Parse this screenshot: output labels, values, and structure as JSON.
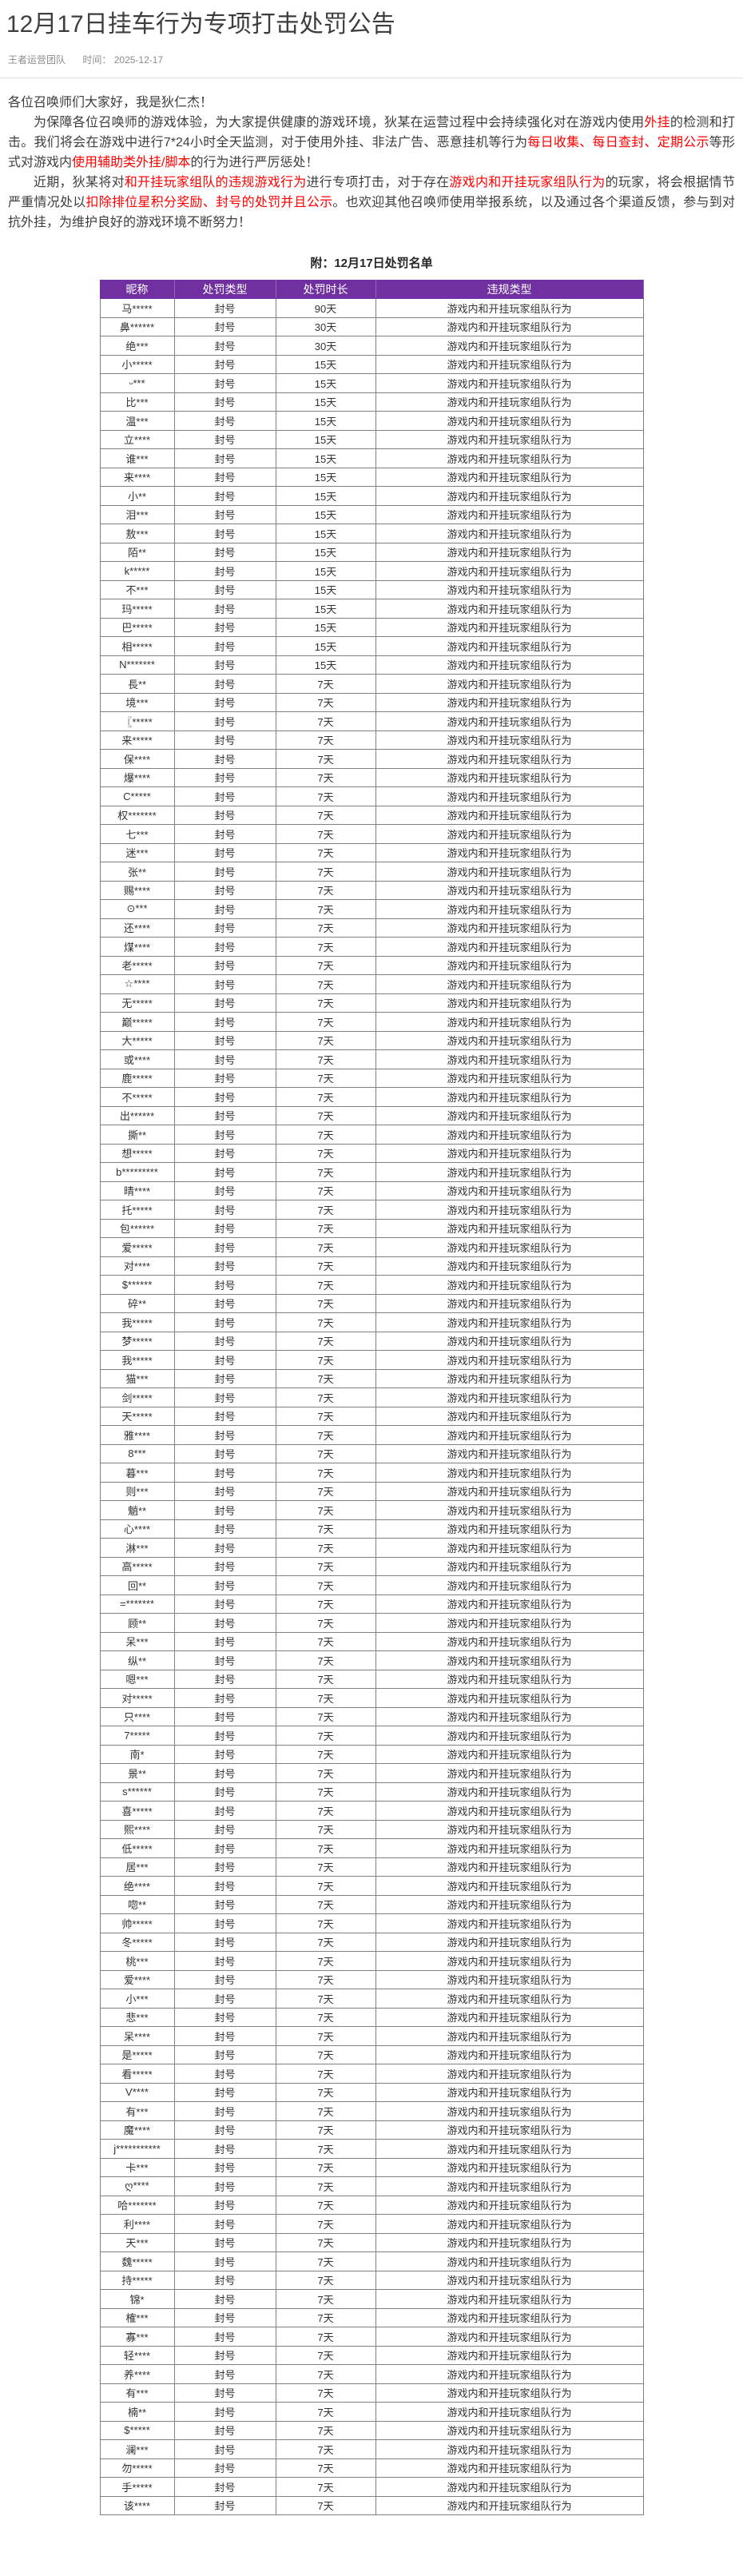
{
  "page": {
    "background": "#ffffff",
    "accent_purple": "#7030A0",
    "highlight_red": "#ff0000"
  },
  "header": {
    "title": "12月17日挂车行为专项打击处罚公告",
    "team": "王者运营团队",
    "time_label": "时间：",
    "date": "2025-12-17"
  },
  "body": {
    "paragraphs": [
      {
        "indent": false,
        "segments": [
          {
            "text": "各位召唤师们大家好，我是狄仁杰！",
            "red": false
          }
        ]
      },
      {
        "indent": true,
        "segments": [
          {
            "text": "为保障各位召唤师的游戏体验，为大家提供健康的游戏环境，狄某在运营过程中会持续强化对在游戏内使用",
            "red": false
          },
          {
            "text": "外挂",
            "red": true
          },
          {
            "text": "的检测和打击。我们将会在游戏中进行7*24小时全天监测，对于使用外挂、非法广告、恶意挂机等行为",
            "red": false
          },
          {
            "text": "每日收集、每日查封、定期公示",
            "red": true
          },
          {
            "text": "等形式对游戏内",
            "red": false
          },
          {
            "text": "使用辅助类外挂/脚本",
            "red": true
          },
          {
            "text": "的行为进行严厉惩处！",
            "red": false
          }
        ]
      },
      {
        "indent": true,
        "segments": [
          {
            "text": "近期，狄某将对",
            "red": false
          },
          {
            "text": "和开挂玩家组队的违规游戏行为",
            "red": true
          },
          {
            "text": "进行专项打击，对于存在",
            "red": false
          },
          {
            "text": "游戏内和开挂玩家组队行为",
            "red": true
          },
          {
            "text": "的玩家，将会根据情节严重情况处以",
            "red": false
          },
          {
            "text": "扣除排位星积分奖励、封号的处罚并且公示",
            "red": true
          },
          {
            "text": "。也欢迎其他召唤师使用举报系统，以及通过各个渠道反馈，参与到对抗外挂，为维护良好的游戏环境不断努力！",
            "red": false
          }
        ]
      }
    ]
  },
  "attachment": {
    "title": "附：12月17日处罚名单"
  },
  "table": {
    "headers": [
      "昵称",
      "处罚类型",
      "处罚时长",
      "违规类型"
    ],
    "punish_type_all": "封号",
    "violation_all": "游戏内和开挂玩家组队行为",
    "rows": [
      {
        "name": "马*****",
        "days": "90天"
      },
      {
        "name": "鼻******",
        "days": "30天"
      },
      {
        "name": "绝***",
        "days": "30天"
      },
      {
        "name": "小*****",
        "days": "15天"
      },
      {
        "name": "ᵕ***",
        "days": "15天"
      },
      {
        "name": "比***",
        "days": "15天"
      },
      {
        "name": "温***",
        "days": "15天"
      },
      {
        "name": "立****",
        "days": "15天"
      },
      {
        "name": "谁***",
        "days": "15天"
      },
      {
        "name": "来****",
        "days": "15天"
      },
      {
        "name": "小**",
        "days": "15天"
      },
      {
        "name": "泪***",
        "days": "15天"
      },
      {
        "name": "敖***",
        "days": "15天"
      },
      {
        "name": "陌**",
        "days": "15天"
      },
      {
        "name": "k*****",
        "days": "15天"
      },
      {
        "name": "不***",
        "days": "15天"
      },
      {
        "name": "玛*****",
        "days": "15天"
      },
      {
        "name": "巴*****",
        "days": "15天"
      },
      {
        "name": "相*****",
        "days": "15天"
      },
      {
        "name": "N*******",
        "days": "15天"
      },
      {
        "name": "長**",
        "days": "7天"
      },
      {
        "name": "境***",
        "days": "7天"
      },
      {
        "name": "〖*****",
        "days": "7天"
      },
      {
        "name": "来*****",
        "days": "7天"
      },
      {
        "name": "保****",
        "days": "7天"
      },
      {
        "name": "爆****",
        "days": "7天"
      },
      {
        "name": "C*****",
        "days": "7天"
      },
      {
        "name": "权*******",
        "days": "7天"
      },
      {
        "name": "七***",
        "days": "7天"
      },
      {
        "name": "迷***",
        "days": "7天"
      },
      {
        "name": "张**",
        "days": "7天"
      },
      {
        "name": "赐****",
        "days": "7天"
      },
      {
        "name": "⊙***",
        "days": "7天"
      },
      {
        "name": "还****",
        "days": "7天"
      },
      {
        "name": "煤****",
        "days": "7天"
      },
      {
        "name": "老*****",
        "days": "7天"
      },
      {
        "name": "☆****",
        "days": "7天"
      },
      {
        "name": "无*****",
        "days": "7天"
      },
      {
        "name": "巅*****",
        "days": "7天"
      },
      {
        "name": "大*****",
        "days": "7天"
      },
      {
        "name": "或****",
        "days": "7天"
      },
      {
        "name": "鹿*****",
        "days": "7天"
      },
      {
        "name": "不*****",
        "days": "7天"
      },
      {
        "name": "出******",
        "days": "7天"
      },
      {
        "name": "撕**",
        "days": "7天"
      },
      {
        "name": "想*****",
        "days": "7天"
      },
      {
        "name": "b*********",
        "days": "7天"
      },
      {
        "name": "晴****",
        "days": "7天"
      },
      {
        "name": "托*****",
        "days": "7天"
      },
      {
        "name": "包******",
        "days": "7天"
      },
      {
        "name": "爱*****",
        "days": "7天"
      },
      {
        "name": "对****",
        "days": "7天"
      },
      {
        "name": "$******",
        "days": "7天"
      },
      {
        "name": "碎**",
        "days": "7天"
      },
      {
        "name": "我*****",
        "days": "7天"
      },
      {
        "name": "梦*****",
        "days": "7天"
      },
      {
        "name": "我*****",
        "days": "7天"
      },
      {
        "name": "猫***",
        "days": "7天"
      },
      {
        "name": "剑*****",
        "days": "7天"
      },
      {
        "name": "天*****",
        "days": "7天"
      },
      {
        "name": "雅****",
        "days": "7天"
      },
      {
        "name": "8***",
        "days": "7天"
      },
      {
        "name": "暮***",
        "days": "7天"
      },
      {
        "name": "则***",
        "days": "7天"
      },
      {
        "name": "魈**",
        "days": "7天"
      },
      {
        "name": "心****",
        "days": "7天"
      },
      {
        "name": "淋***",
        "days": "7天"
      },
      {
        "name": "高*****",
        "days": "7天"
      },
      {
        "name": "回**",
        "days": "7天"
      },
      {
        "name": "=*******",
        "days": "7天"
      },
      {
        "name": "顾**",
        "days": "7天"
      },
      {
        "name": "呆***",
        "days": "7天"
      },
      {
        "name": "纵**",
        "days": "7天"
      },
      {
        "name": "嗯***",
        "days": "7天"
      },
      {
        "name": "对*****",
        "days": "7天"
      },
      {
        "name": "只****",
        "days": "7天"
      },
      {
        "name": "7*****",
        "days": "7天"
      },
      {
        "name": "南*",
        "days": "7天"
      },
      {
        "name": "景**",
        "days": "7天"
      },
      {
        "name": "s******",
        "days": "7天"
      },
      {
        "name": "喜*****",
        "days": "7天"
      },
      {
        "name": "熙****",
        "days": "7天"
      },
      {
        "name": "低*****",
        "days": "7天"
      },
      {
        "name": "居***",
        "days": "7天"
      },
      {
        "name": "绝****",
        "days": "7天"
      },
      {
        "name": "唿**",
        "days": "7天"
      },
      {
        "name": "帅*****",
        "days": "7天"
      },
      {
        "name": "冬*****",
        "days": "7天"
      },
      {
        "name": "桃***",
        "days": "7天"
      },
      {
        "name": "爱****",
        "days": "7天"
      },
      {
        "name": "小***",
        "days": "7天"
      },
      {
        "name": "悲***",
        "days": "7天"
      },
      {
        "name": "呆****",
        "days": "7天"
      },
      {
        "name": "是*****",
        "days": "7天"
      },
      {
        "name": "看*****",
        "days": "7天"
      },
      {
        "name": "V****",
        "days": "7天"
      },
      {
        "name": "有***",
        "days": "7天"
      },
      {
        "name": "魔****",
        "days": "7天"
      },
      {
        "name": "j***********",
        "days": "7天"
      },
      {
        "name": "卡***",
        "days": "7天"
      },
      {
        "name": "ღ****",
        "days": "7天"
      },
      {
        "name": "哈*******",
        "days": "7天"
      },
      {
        "name": "利****",
        "days": "7天"
      },
      {
        "name": "天***",
        "days": "7天"
      },
      {
        "name": "魏*****",
        "days": "7天"
      },
      {
        "name": "持*****",
        "days": "7天"
      },
      {
        "name": "锦*",
        "days": "7天"
      },
      {
        "name": "榷***",
        "days": "7天"
      },
      {
        "name": "寡***",
        "days": "7天"
      },
      {
        "name": "轻****",
        "days": "7天"
      },
      {
        "name": "养****",
        "days": "7天"
      },
      {
        "name": "有***",
        "days": "7天"
      },
      {
        "name": "楠**",
        "days": "7天"
      },
      {
        "name": "$*****",
        "days": "7天"
      },
      {
        "name": "澜***",
        "days": "7天"
      },
      {
        "name": "勿*****",
        "days": "7天"
      },
      {
        "name": "手*****",
        "days": "7天"
      },
      {
        "name": "该****",
        "days": "7天"
      }
    ]
  }
}
